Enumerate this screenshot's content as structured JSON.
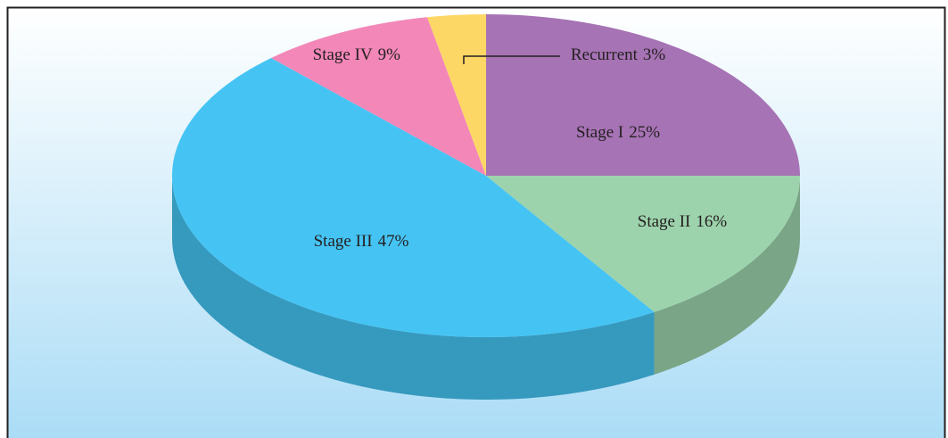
{
  "chart_data": {
    "type": "pie",
    "categories": [
      "Stage I",
      "Stage II",
      "Stage III",
      "Stage IV",
      "Recurrent"
    ],
    "values": [
      25,
      16,
      47,
      9,
      3
    ],
    "value_labels": [
      "25%",
      "16%",
      "47%",
      "9%",
      "3%"
    ],
    "colors": [
      "#a673b4",
      "#9dd3ac",
      "#45c4f4",
      "#f287b8",
      "#fdd766"
    ]
  }
}
